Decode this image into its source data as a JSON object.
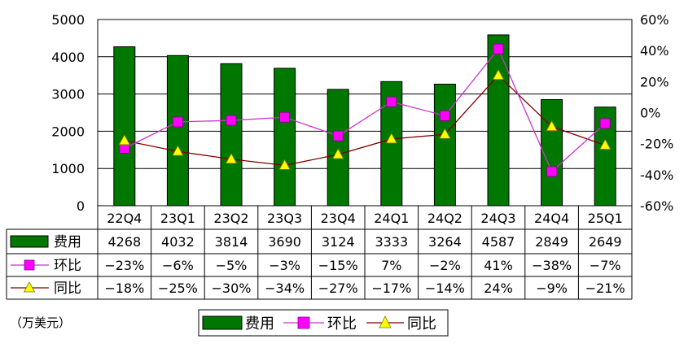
{
  "chart_data": {
    "type": "bar",
    "categories": [
      "22Q4",
      "23Q1",
      "23Q2",
      "23Q3",
      "23Q4",
      "24Q1",
      "24Q2",
      "24Q3",
      "24Q4",
      "25Q1"
    ],
    "series": [
      {
        "name": "费用",
        "kind": "bar",
        "axis": "left",
        "values": [
          4268,
          4032,
          3814,
          3690,
          3124,
          3333,
          3264,
          4587,
          2849,
          2649
        ]
      },
      {
        "name": "环比",
        "kind": "line",
        "axis": "right",
        "values": [
          -23,
          -6,
          -5,
          -3,
          -15,
          7,
          -2,
          41,
          -38,
          -7
        ]
      },
      {
        "name": "同比",
        "kind": "line",
        "axis": "right",
        "values": [
          -18,
          -25,
          -30,
          -34,
          -27,
          -17,
          -14,
          24,
          -9,
          -21
        ]
      }
    ],
    "table_rows": [
      [
        "4268",
        "4032",
        "3814",
        "3690",
        "3124",
        "3333",
        "3264",
        "4587",
        "2849",
        "2649"
      ],
      [
        "−23%",
        "−6%",
        "−5%",
        "−3%",
        "−15%",
        "7%",
        "−2%",
        "41%",
        "−38%",
        "−7%"
      ],
      [
        "−18%",
        "−25%",
        "−30%",
        "−34%",
        "−27%",
        "−17%",
        "−14%",
        "24%",
        "−9%",
        "−21%"
      ]
    ],
    "left_axis": {
      "min": 0,
      "max": 5000,
      "ticks": [
        "0",
        "1000",
        "2000",
        "3000",
        "4000",
        "5000"
      ]
    },
    "right_axis": {
      "min": -60,
      "max": 60,
      "ticks": [
        "-60%",
        "-40%",
        "-20%",
        "0%",
        "20%",
        "40%",
        "60%"
      ]
    },
    "unit_label": "（万美元）",
    "grid": true,
    "legend_position": "bottom",
    "colors": {
      "bar": "#007800",
      "bar_edge": "#000000",
      "qoq_line": "#cc33cc",
      "qoq_marker": "#ff00ff",
      "yoy_line": "#800000",
      "yoy_marker": "#ffff00"
    }
  }
}
